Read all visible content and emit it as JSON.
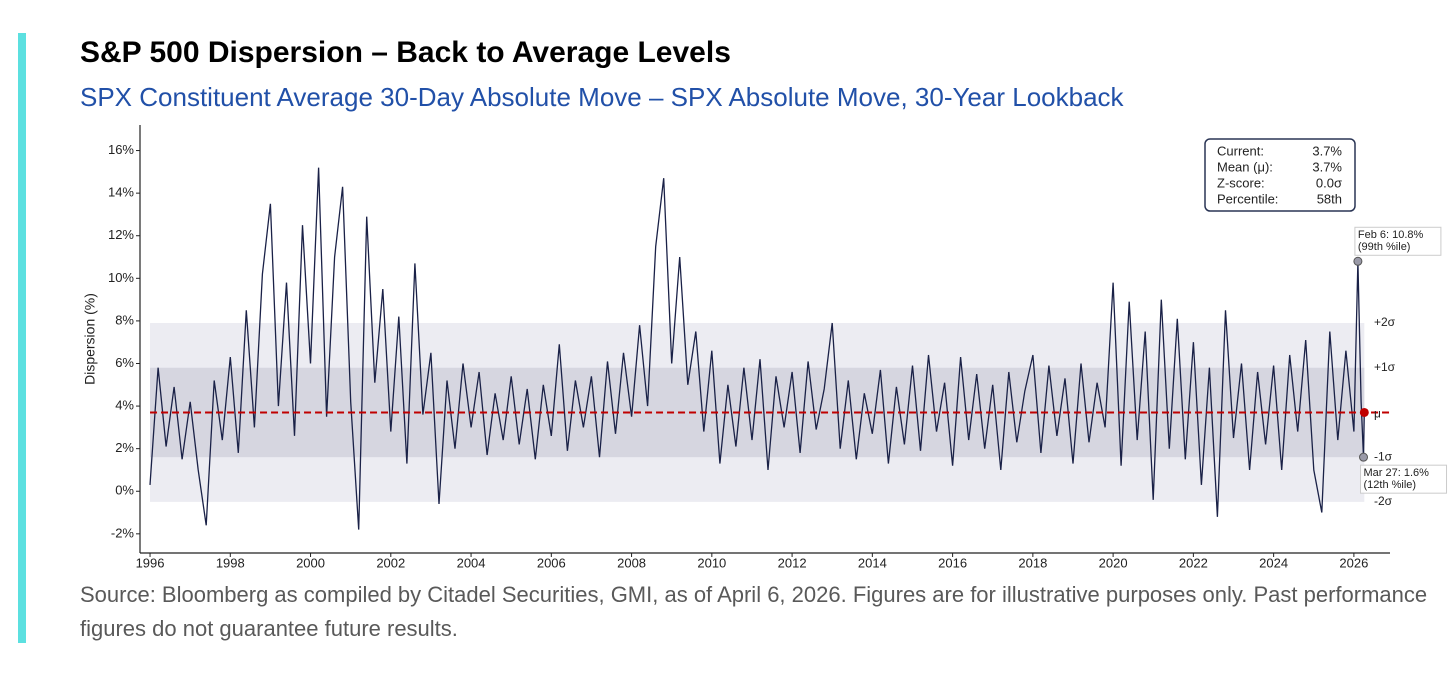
{
  "chart_data": {
    "type": "line",
    "title": "S&P 500 Dispersion – Back to Average Levels",
    "subtitle": "SPX Constituent Average 30-Day Absolute Move – SPX Absolute Move, 30-Year Lookback",
    "ylabel": "Dispersion (%)",
    "source": "Source: Bloomberg as compiled by Citadel Securities, GMI, as of April 6, 2026. Figures are for illustrative purposes only. Past performance figures do not guarantee future results.",
    "color": "#1a2147",
    "x": [
      1996,
      1996.2,
      1996.4,
      1996.6,
      1996.8,
      1997,
      1997.2,
      1997.4,
      1997.6,
      1997.8,
      1998,
      1998.2,
      1998.4,
      1998.6,
      1998.8,
      1999,
      1999.2,
      1999.4,
      1999.6,
      1999.8,
      2000,
      2000.2,
      2000.4,
      2000.6,
      2000.8,
      2001,
      2001.2,
      2001.4,
      2001.6,
      2001.8,
      2002,
      2002.2,
      2002.4,
      2002.6,
      2002.8,
      2003,
      2003.2,
      2003.4,
      2003.6,
      2003.8,
      2004,
      2004.2,
      2004.4,
      2004.6,
      2004.8,
      2005,
      2005.2,
      2005.4,
      2005.6,
      2005.8,
      2006,
      2006.2,
      2006.4,
      2006.6,
      2006.8,
      2007,
      2007.2,
      2007.4,
      2007.6,
      2007.8,
      2008,
      2008.2,
      2008.4,
      2008.6,
      2008.8,
      2009,
      2009.2,
      2009.4,
      2009.6,
      2009.8,
      2010,
      2010.2,
      2010.4,
      2010.6,
      2010.8,
      2011,
      2011.2,
      2011.4,
      2011.6,
      2011.8,
      2012,
      2012.2,
      2012.4,
      2012.6,
      2012.8,
      2013,
      2013.2,
      2013.4,
      2013.6,
      2013.8,
      2014,
      2014.2,
      2014.4,
      2014.6,
      2014.8,
      2015,
      2015.2,
      2015.4,
      2015.6,
      2015.8,
      2016,
      2016.2,
      2016.4,
      2016.6,
      2016.8,
      2017,
      2017.2,
      2017.4,
      2017.6,
      2017.8,
      2018,
      2018.2,
      2018.4,
      2018.6,
      2018.8,
      2019,
      2019.2,
      2019.4,
      2019.6,
      2019.8,
      2020,
      2020.2,
      2020.4,
      2020.6,
      2020.8,
      2021,
      2021.2,
      2021.4,
      2021.6,
      2021.8,
      2022,
      2022.2,
      2022.4,
      2022.6,
      2022.8,
      2023,
      2023.2,
      2023.4,
      2023.6,
      2023.8,
      2024,
      2024.2,
      2024.4,
      2024.6,
      2024.8,
      2025,
      2025.2,
      2025.4,
      2025.6,
      2025.8,
      2026,
      2026.1,
      2026.18,
      2026.24,
      2026.26
    ],
    "values": [
      0.3,
      5.8,
      2.1,
      4.9,
      1.5,
      4.2,
      1.0,
      -1.6,
      5.2,
      2.4,
      6.3,
      1.8,
      8.5,
      3.0,
      10.2,
      13.5,
      4.0,
      9.8,
      2.6,
      12.5,
      6.0,
      15.2,
      3.5,
      11.0,
      14.3,
      4.2,
      -1.8,
      12.9,
      5.1,
      9.5,
      2.8,
      8.2,
      1.3,
      10.7,
      3.6,
      6.5,
      -0.6,
      5.2,
      2.0,
      6.0,
      3.0,
      5.6,
      1.7,
      4.6,
      2.4,
      5.4,
      2.2,
      4.8,
      1.5,
      5.0,
      2.6,
      6.9,
      1.9,
      5.2,
      3.0,
      5.4,
      1.6,
      6.1,
      2.7,
      6.5,
      3.5,
      7.8,
      4.0,
      11.5,
      14.7,
      6.0,
      11.0,
      5.0,
      7.5,
      2.8,
      6.6,
      1.3,
      5.0,
      2.1,
      5.8,
      2.4,
      6.2,
      1.0,
      5.4,
      3.0,
      5.6,
      1.8,
      6.1,
      2.9,
      4.8,
      7.9,
      2.0,
      5.2,
      1.5,
      4.6,
      2.7,
      5.7,
      1.3,
      4.9,
      2.2,
      5.9,
      1.9,
      6.4,
      2.8,
      5.1,
      1.2,
      6.3,
      2.4,
      5.5,
      2.0,
      5.0,
      1.0,
      5.6,
      2.3,
      4.7,
      6.4,
      1.8,
      5.9,
      2.6,
      5.3,
      1.3,
      6.0,
      2.3,
      5.1,
      3.0,
      9.8,
      1.2,
      8.9,
      2.4,
      7.5,
      -0.4,
      9.0,
      2.0,
      8.1,
      1.5,
      7.0,
      0.3,
      5.8,
      -1.2,
      8.5,
      2.5,
      6.0,
      1.0,
      5.6,
      2.2,
      5.9,
      1.0,
      6.4,
      2.8,
      7.1,
      1.0,
      -1.0,
      7.5,
      2.4,
      6.6,
      2.8,
      10.8,
      4.2,
      1.6,
      3.7
    ],
    "xlim": [
      1995.75,
      2026.9
    ],
    "ylim": [
      -2.9,
      17.2
    ],
    "xticks": [
      1996,
      1998,
      2000,
      2002,
      2004,
      2006,
      2008,
      2010,
      2012,
      2014,
      2016,
      2018,
      2020,
      2022,
      2024,
      2026
    ],
    "yticks": [
      {
        "value": -2,
        "label": "-2%"
      },
      {
        "value": 0,
        "label": "0%"
      },
      {
        "value": 2,
        "label": "2%"
      },
      {
        "value": 4,
        "label": "4%"
      },
      {
        "value": 6,
        "label": "6%"
      },
      {
        "value": 8,
        "label": "8%"
      },
      {
        "value": 10,
        "label": "10%"
      },
      {
        "value": 12,
        "label": "12%"
      },
      {
        "value": 14,
        "label": "14%"
      },
      {
        "value": 16,
        "label": "16%"
      }
    ],
    "mean": {
      "value": 3.7,
      "label": "μ",
      "color": "#c00000"
    },
    "sigma_levels": [
      {
        "value": 7.9,
        "label": "+2σ"
      },
      {
        "value": 5.8,
        "label": "+1σ"
      },
      {
        "value": 1.6,
        "label": "-1σ"
      },
      {
        "value": -0.5,
        "label": "-2σ"
      }
    ],
    "band_colors": [
      "#ececf2",
      "#d6d6e0"
    ],
    "stats": [
      [
        "Current:",
        "3.7%"
      ],
      [
        "Mean (μ):",
        "3.7%"
      ],
      [
        "Z-score:",
        "0.0σ"
      ],
      [
        "Percentile:",
        "58th"
      ]
    ],
    "annotations": [
      {
        "x": 2026.1,
        "y": 10.8,
        "text": [
          "Feb 6: 10.8%",
          "(99th %ile)"
        ]
      },
      {
        "x": 2026.24,
        "y": 1.6,
        "text": [
          "Mar 27: 1.6%",
          "(12th %ile)"
        ]
      }
    ]
  }
}
